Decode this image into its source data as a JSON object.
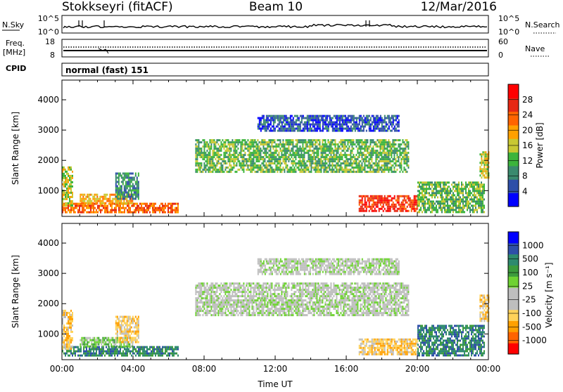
{
  "header": {
    "radar": "Stokkseyri (fitACF)",
    "beam": "Beam 10",
    "date": "12/Mar/2016"
  },
  "status_panel": {
    "nsky_label": "N.Sky",
    "nsky_ticks": [
      "10^5",
      "10^0"
    ],
    "nsearch_label": "N.Search",
    "nsearch_ticks": [
      "10^5",
      "10^0"
    ],
    "freq_label": "Freq.",
    "freq_unit": "[MHz]",
    "freq_ticks": [
      "18",
      "8"
    ],
    "nave_label": "Nave",
    "nave_ticks": [
      "60",
      "0"
    ],
    "cpid_label": "CPID",
    "cpid_value": "normal (fast) 151"
  },
  "colors": {
    "power": [
      "#0000ff",
      "#2e4fa8",
      "#3a8a6e",
      "#3cb43c",
      "#c8c832",
      "#ffa000",
      "#ff6400",
      "#e62814",
      "#ff0000"
    ],
    "velocity": [
      "#ff0000",
      "#ff6400",
      "#ffa000",
      "#ffd25a",
      "#bebebe",
      "#bebebe",
      "#6ed232",
      "#3c9b3c",
      "#2e8a6e",
      "#2e4fa8",
      "#0000ff"
    ]
  },
  "chart_data": [
    {
      "type": "heatmap",
      "name": "power",
      "ylabel": "Slant Range [km]",
      "ylim": [
        150,
        4650
      ],
      "yticks": [
        "1000",
        "2000",
        "3000",
        "4000"
      ],
      "xlim": [
        "00:00",
        "24:00"
      ],
      "xticks": [
        "00:00",
        "04:00",
        "08:00",
        "12:00",
        "16:00",
        "20:00",
        "00:00"
      ],
      "colorbar": {
        "label": "Power [dB]",
        "ticks": [
          "4",
          "8",
          "12",
          "16",
          "20",
          "24",
          "28"
        ],
        "range": [
          0,
          32
        ]
      },
      "regions": [
        {
          "t": [
            0.0,
            6.5
          ],
          "r": [
            300,
            600
          ],
          "level": 22
        },
        {
          "t": [
            1.0,
            4.0
          ],
          "r": [
            600,
            900
          ],
          "level": 20
        },
        {
          "t": [
            0.0,
            0.6
          ],
          "r": [
            500,
            1800
          ],
          "level": 17
        },
        {
          "t": [
            3.0,
            4.3
          ],
          "r": [
            700,
            1600
          ],
          "level": 10
        },
        {
          "t": [
            7.5,
            19.5
          ],
          "r": [
            1600,
            2700
          ],
          "level": 12
        },
        {
          "t": [
            11.0,
            19.0
          ],
          "r": [
            3000,
            3500
          ],
          "level": 6
        },
        {
          "t": [
            16.7,
            20.0
          ],
          "r": [
            300,
            850
          ],
          "level": 28
        },
        {
          "t": [
            20.0,
            23.8
          ],
          "r": [
            300,
            1300
          ],
          "level": 14
        },
        {
          "t": [
            23.5,
            24.0
          ],
          "r": [
            1400,
            2300
          ],
          "level": 16
        }
      ]
    },
    {
      "type": "heatmap",
      "name": "velocity",
      "ylabel": "Slant Range [km]",
      "ylim": [
        150,
        4650
      ],
      "yticks": [
        "1000",
        "2000",
        "3000",
        "4000"
      ],
      "xlabel": "Time UT",
      "xlim": [
        "00:00",
        "24:00"
      ],
      "xticks": [
        "00:00",
        "04:00",
        "08:00",
        "12:00",
        "16:00",
        "20:00",
        "00:00"
      ],
      "colorbar": {
        "label": "Velocity [m s⁻¹]",
        "ticks": [
          "1000",
          "500",
          "100",
          "25",
          "-25",
          "-100",
          "-500",
          "-1000"
        ]
      },
      "regions": [
        {
          "t": [
            0.0,
            6.5
          ],
          "r": [
            300,
            600
          ],
          "level": 150
        },
        {
          "t": [
            1.0,
            4.0
          ],
          "r": [
            600,
            900
          ],
          "level": 10
        },
        {
          "t": [
            0.0,
            0.6
          ],
          "r": [
            500,
            1800
          ],
          "level": -150
        },
        {
          "t": [
            3.0,
            4.3
          ],
          "r": [
            700,
            1600
          ],
          "level": -200
        },
        {
          "t": [
            7.5,
            19.5
          ],
          "r": [
            1600,
            2700
          ],
          "level": 0
        },
        {
          "t": [
            11.0,
            19.0
          ],
          "r": [
            3000,
            3500
          ],
          "level": 0
        },
        {
          "t": [
            16.7,
            20.0
          ],
          "r": [
            300,
            850
          ],
          "level": -300
        },
        {
          "t": [
            20.0,
            23.8
          ],
          "r": [
            300,
            1300
          ],
          "level": 150
        },
        {
          "t": [
            23.5,
            24.0
          ],
          "r": [
            1400,
            2300
          ],
          "level": -120
        }
      ]
    }
  ]
}
